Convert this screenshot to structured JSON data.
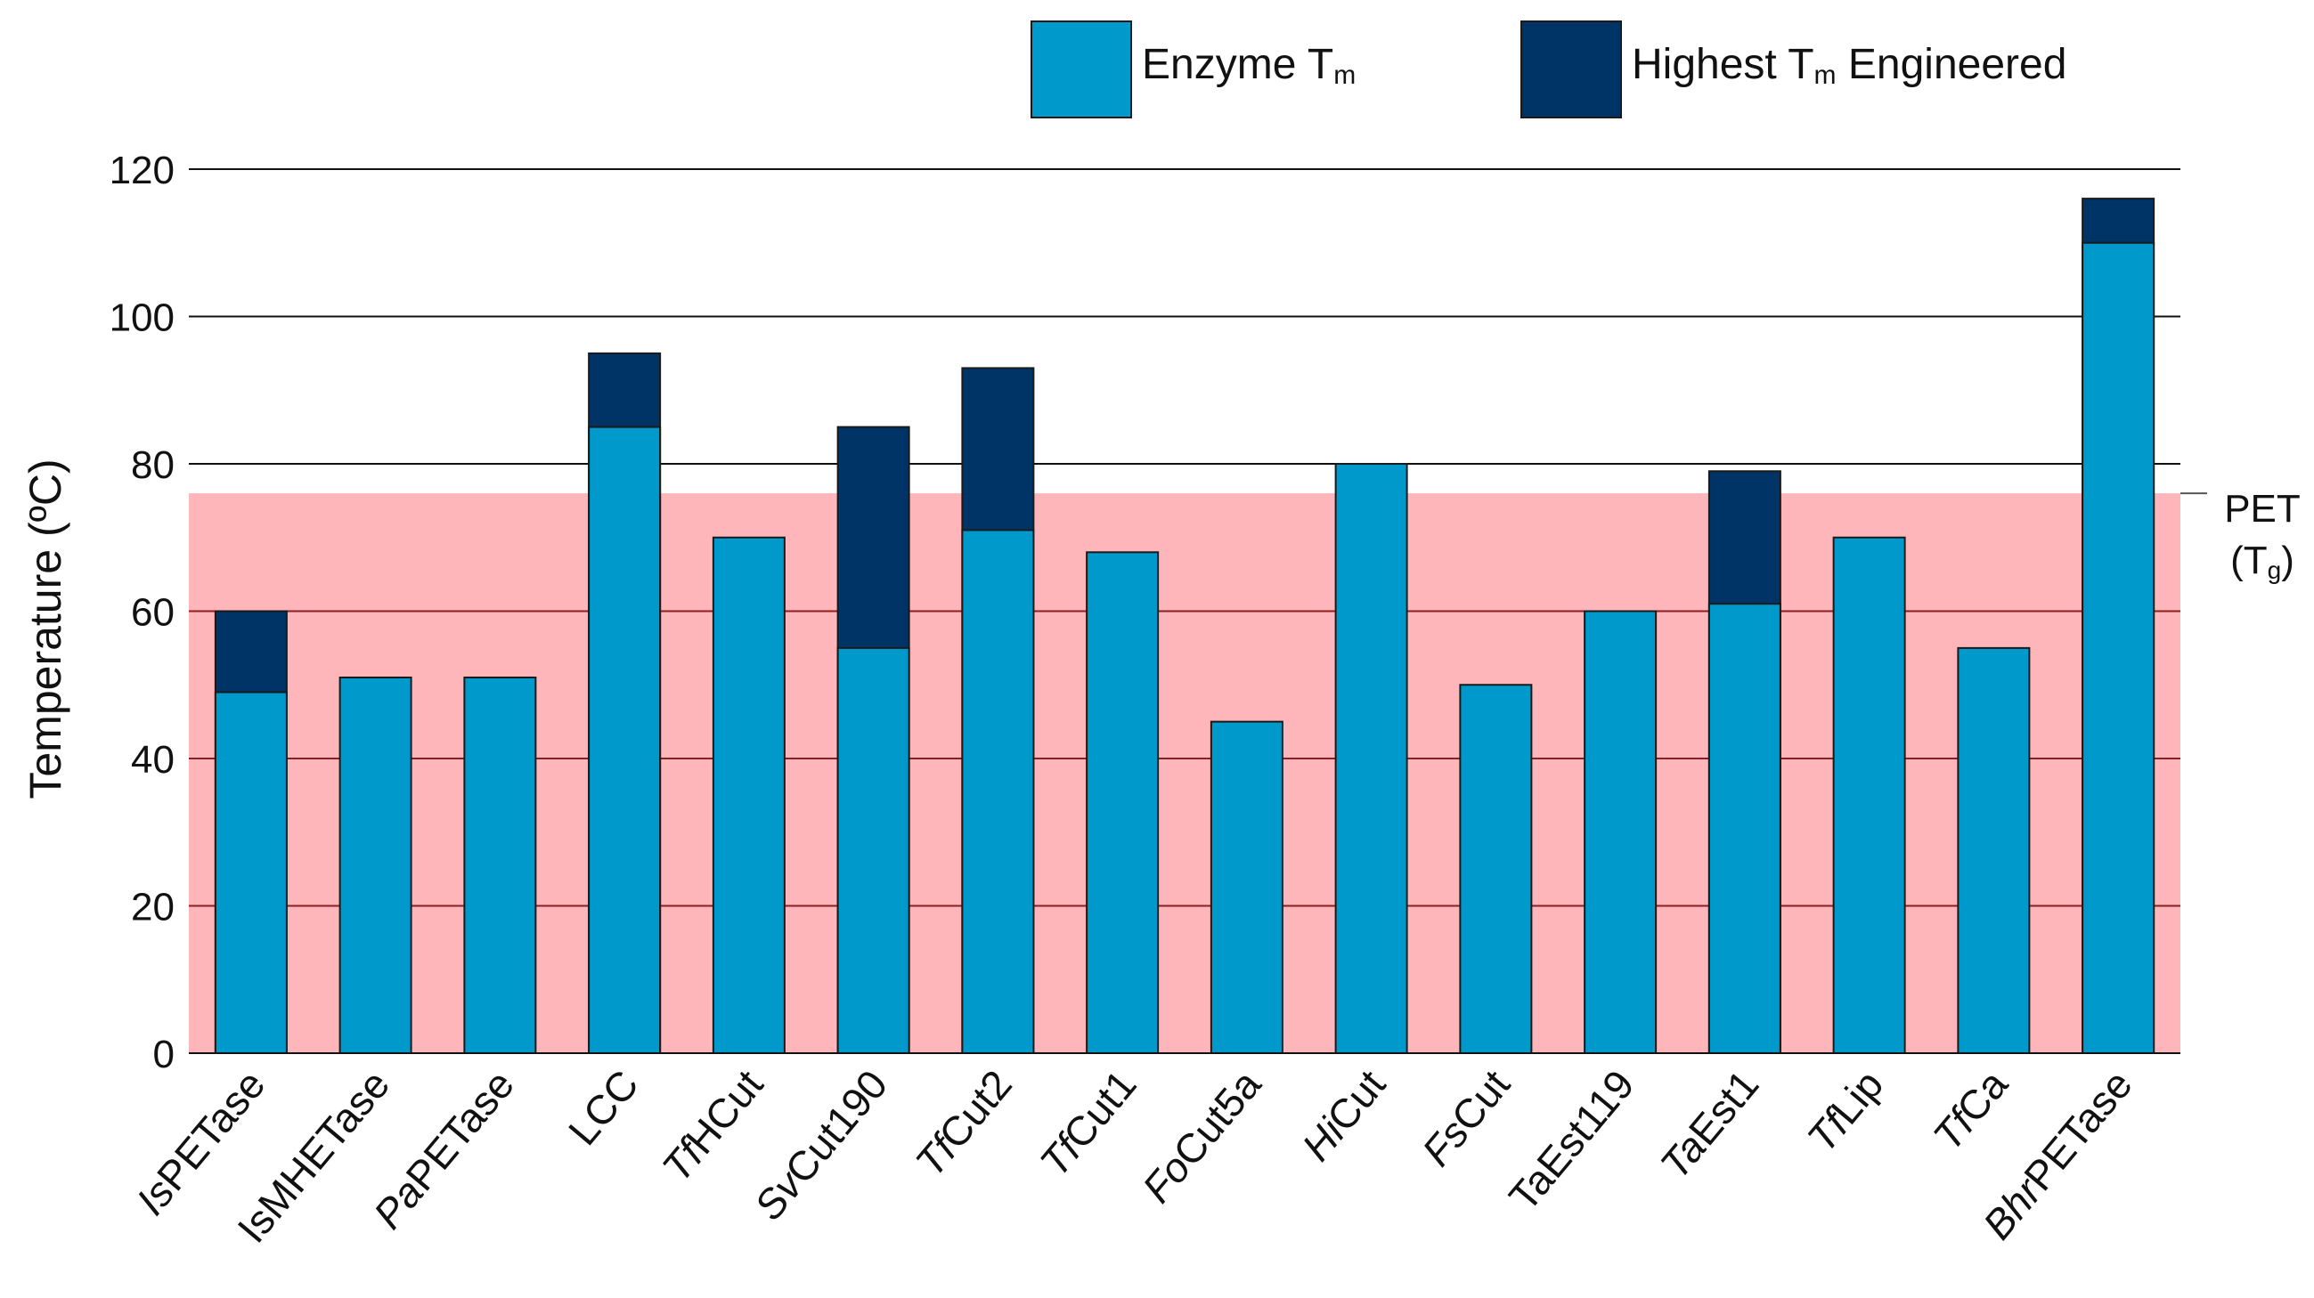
{
  "chart_data": {
    "type": "bar",
    "title": "",
    "xlabel": "",
    "ylabel": "Temperature (ºC)",
    "ylim": [
      0,
      120
    ],
    "yticks": [
      0,
      20,
      40,
      60,
      80,
      100,
      120
    ],
    "grid": true,
    "legend_position": "top",
    "categories": [
      {
        "prefix": "Is",
        "rest": "PETase"
      },
      {
        "prefix": "",
        "rest": "IsMHETase"
      },
      {
        "prefix": "Pa",
        "rest": "PETase"
      },
      {
        "prefix": "",
        "rest": "LCC"
      },
      {
        "prefix": "Tf",
        "rest": "HCut"
      },
      {
        "prefix": "Sv",
        "rest": "Cut190"
      },
      {
        "prefix": "Tf",
        "rest": "Cut2"
      },
      {
        "prefix": "Tf",
        "rest": "Cut1"
      },
      {
        "prefix": "Fo",
        "rest": "Cut5a"
      },
      {
        "prefix": "Hi",
        "rest": "Cut"
      },
      {
        "prefix": "Fs",
        "rest": "Cut"
      },
      {
        "prefix": "",
        "rest": "TaEst119"
      },
      {
        "prefix": "Ta",
        "rest": "Est1"
      },
      {
        "prefix": "Tf",
        "rest": "Lip"
      },
      {
        "prefix": "Tf",
        "rest": "Ca"
      },
      {
        "prefix": "Bhr",
        "rest": "PETase"
      }
    ],
    "series": [
      {
        "name": "Enzyme Tm",
        "color": "#0099CC",
        "values": [
          49,
          51,
          51,
          85,
          70,
          55,
          71,
          68,
          45,
          80,
          50,
          60,
          61,
          70,
          55,
          110
        ]
      },
      {
        "name": "Highest Tm Engineered",
        "color": "#003366",
        "values": [
          60,
          null,
          null,
          95,
          null,
          85,
          93,
          null,
          null,
          null,
          null,
          null,
          79,
          null,
          null,
          116
        ]
      }
    ],
    "legend": [
      {
        "main": "Enzyme T",
        "sub": "m",
        "after": ""
      },
      {
        "main": "Highest T",
        "sub": "m",
        "after": " Engineered"
      }
    ],
    "annotations": [
      {
        "name": "PET Tg",
        "value": 76,
        "line1": "PET",
        "line2_open": "(T",
        "line2_sub": "g",
        "line2_close": ")",
        "color": "#FFB6BA"
      }
    ]
  }
}
